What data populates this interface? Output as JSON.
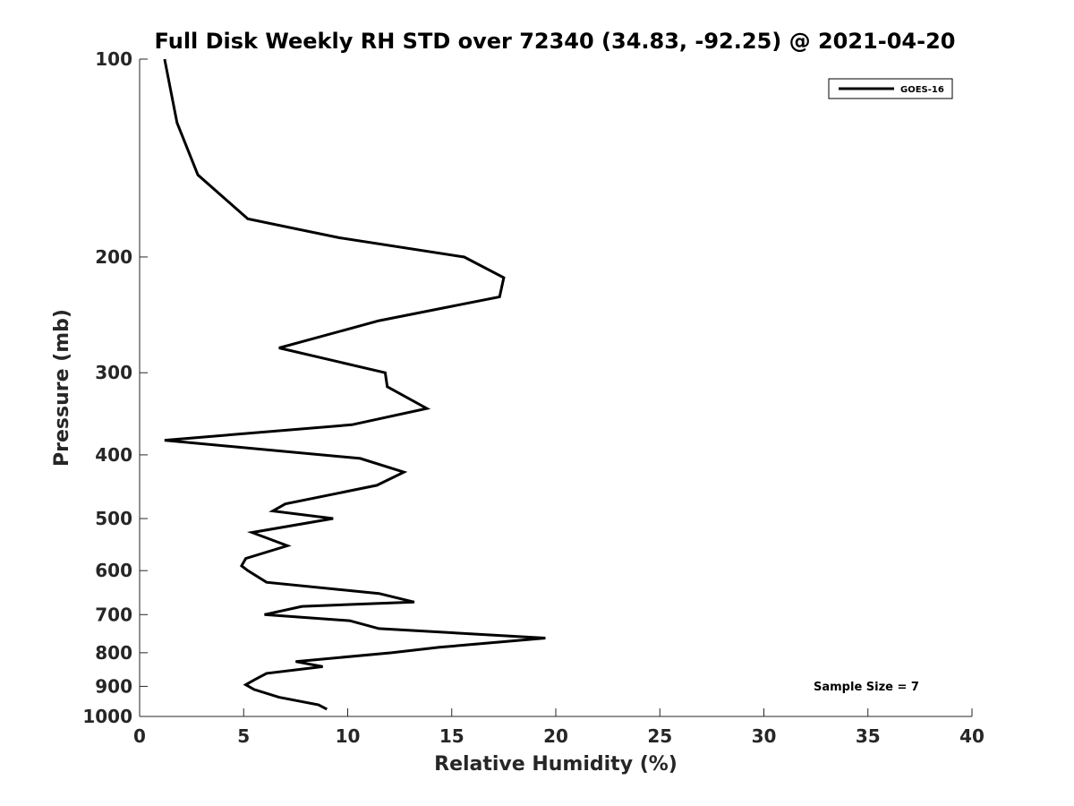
{
  "chart_data": {
    "type": "line",
    "title": "Full Disk Weekly RH STD over 72340 (34.83, -92.25) @ 2021-04-20",
    "xlabel": "Relative Humidity (%)",
    "ylabel": "Pressure (mb)",
    "xlim": [
      0,
      40
    ],
    "ylim": [
      100,
      1000
    ],
    "y_scale": "log",
    "y_reversed": true,
    "x_ticks": [
      0,
      5,
      10,
      15,
      20,
      25,
      30,
      35,
      40
    ],
    "y_ticks": [
      100,
      200,
      300,
      400,
      500,
      600,
      700,
      800,
      900,
      1000
    ],
    "grid": false,
    "legend_position": "top-right",
    "annotation": "Sample Size = 7",
    "series": [
      {
        "name": "GOES-16",
        "color": "#000000",
        "points": [
          [
            1.2,
            100
          ],
          [
            1.8,
            125
          ],
          [
            2.8,
            150
          ],
          [
            5.2,
            175
          ],
          [
            9.6,
            187
          ],
          [
            15.6,
            200
          ],
          [
            17.5,
            215
          ],
          [
            17.3,
            230
          ],
          [
            11.5,
            250
          ],
          [
            6.7,
            275
          ],
          [
            11.8,
            300
          ],
          [
            11.9,
            315
          ],
          [
            13.8,
            340
          ],
          [
            10.2,
            360
          ],
          [
            1.2,
            380
          ],
          [
            10.6,
            405
          ],
          [
            12.7,
            425
          ],
          [
            11.4,
            445
          ],
          [
            7.0,
            475
          ],
          [
            6.4,
            487
          ],
          [
            9.3,
            500
          ],
          [
            5.4,
            525
          ],
          [
            7.1,
            550
          ],
          [
            5.1,
            575
          ],
          [
            4.9,
            590
          ],
          [
            5.2,
            600
          ],
          [
            6.1,
            625
          ],
          [
            11.5,
            650
          ],
          [
            13.2,
            670
          ],
          [
            7.8,
            680
          ],
          [
            6.0,
            700
          ],
          [
            10.1,
            715
          ],
          [
            11.5,
            735
          ],
          [
            19.5,
            760
          ],
          [
            14.4,
            785
          ],
          [
            12.1,
            800
          ],
          [
            7.5,
            825
          ],
          [
            8.8,
            840
          ],
          [
            6.1,
            860
          ],
          [
            5.5,
            880
          ],
          [
            5.1,
            895
          ],
          [
            5.5,
            910
          ],
          [
            6.7,
            935
          ],
          [
            8.6,
            960
          ],
          [
            9.0,
            975
          ]
        ]
      }
    ]
  }
}
